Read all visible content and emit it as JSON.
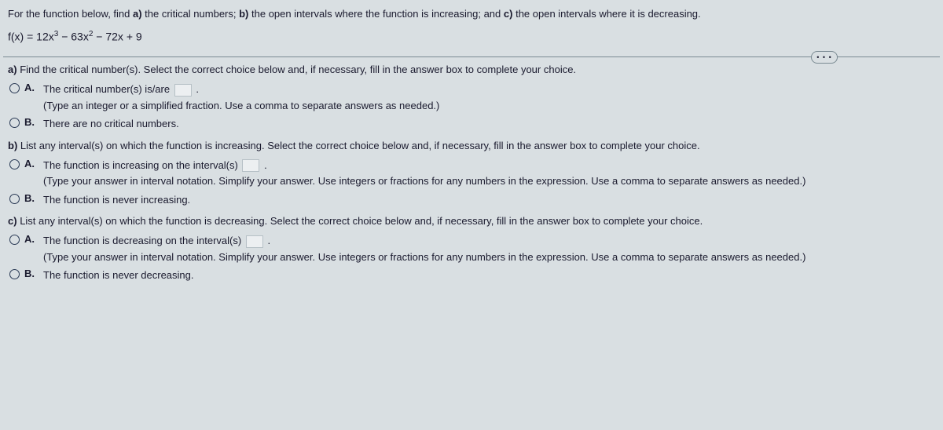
{
  "header": {
    "prompt_pre": "For the function below, find ",
    "a_lbl": "a)",
    "a_txt": " the critical numbers; ",
    "b_lbl": "b)",
    "b_txt": " the open intervals where the function is increasing; and ",
    "c_lbl": "c)",
    "c_txt": " the open intervals where it is decreasing.",
    "fn_lhs": "f(x) = 12x",
    "fn_exp3": "3",
    "fn_mid1": " − 63x",
    "fn_exp2": "2",
    "fn_tail": " − 72x + 9",
    "more": "• • •"
  },
  "qa": {
    "head_lbl": "a)",
    "head_txt": " Find the critical number(s). Select the correct choice below and, if necessary, fill in the answer box to complete your choice.",
    "A_lbl": "A.",
    "A_txt": "The critical number(s) is/are ",
    "A_post": ".",
    "A_hint": "(Type an integer or a simplified fraction. Use a comma to separate answers as needed.)",
    "B_lbl": "B.",
    "B_txt": "There are no critical numbers."
  },
  "qb": {
    "head_lbl": "b)",
    "head_txt": " List any interval(s) on which the function is increasing. Select the correct choice below and, if necessary, fill in the answer box to complete your choice.",
    "A_lbl": "A.",
    "A_txt": "The function is increasing on the interval(s) ",
    "A_post": ".",
    "A_hint": "(Type your answer in interval notation. Simplify your answer. Use integers or fractions for any numbers in the expression. Use a comma to separate answers as needed.)",
    "B_lbl": "B.",
    "B_txt": "The function is never increasing."
  },
  "qc": {
    "head_lbl": "c)",
    "head_txt": " List any interval(s) on which the function is decreasing. Select the correct choice below and, if necessary, fill in the answer box to complete your choice.",
    "A_lbl": "A.",
    "A_txt": "The function is decreasing on the interval(s) ",
    "A_post": ".",
    "A_hint": "(Type your answer in interval notation. Simplify your answer. Use integers or fractions for any numbers in the expression. Use a comma to separate answers as needed.)",
    "B_lbl": "B.",
    "B_txt": "The function is never decreasing."
  }
}
